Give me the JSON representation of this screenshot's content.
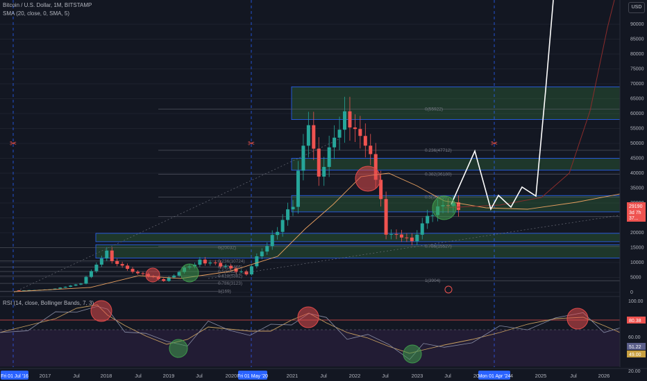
{
  "header": {
    "title": "Bitcoin / U.S. Dollar, 1M, BITSTAMP",
    "sma": "SMA (20, close, 0, SMA, 5)",
    "currency": "USD"
  },
  "rsi_pane": {
    "title": "RSI (14, close, Bollinger Bands, 7, 3)",
    "value1": "80.38",
    "value2": "51.22",
    "value3": "49.00",
    "ticks": [
      "100.00",
      "60.00",
      "20.00"
    ]
  },
  "price_axis": {
    "ticks": [
      "90000",
      "85000",
      "80000",
      "75000",
      "70000",
      "65000",
      "60000",
      "55000",
      "50000",
      "45000",
      "40000",
      "35000",
      "30000",
      "25000",
      "20000",
      "15000",
      "10000",
      "5000",
      "0"
    ],
    "current_price": "29190",
    "current_sub": "3d 7h",
    "current_sub2": "37..."
  },
  "fib_right": [
    "0(55922)",
    "0.236(47712)",
    "0.382(36180)",
    "0.5(30500)",
    "0.786(15527)",
    "1(3904)"
  ],
  "fib_left": [
    "0(20032)",
    "0.236(10724)",
    "0.382(6466)",
    "0.5(5082)",
    "0.618(5382)",
    "0.786(3123)",
    "1(169)"
  ],
  "time_axis": {
    "labels": [
      "2017",
      "Jul",
      "2018",
      "Jul",
      "2019",
      "Jul",
      "2020",
      "2021",
      "Jul",
      "2022",
      "Jul",
      "2023",
      "Jul",
      "2025",
      "Jul",
      "2026"
    ],
    "highlights": [
      "Fri 01 Jul '16",
      "Fri 01 May '20",
      "Mon 01 Apr '24"
    ],
    "partial_labels": [
      "20",
      "4"
    ]
  },
  "chart_data": {
    "type": "candlestick",
    "symbol": "BTCUSD",
    "timeframe": "1M",
    "y_range": [
      0,
      90000
    ],
    "monthly_candles_approx": [
      {
        "date": "2016-07",
        "o": 670,
        "c": 620
      },
      {
        "date": "2017-01",
        "o": 960,
        "c": 970
      },
      {
        "date": "2017-07",
        "o": 2480,
        "c": 2870
      },
      {
        "date": "2017-12",
        "o": 10000,
        "c": 13850
      },
      {
        "date": "2018-01",
        "o": 13850,
        "c": 10200
      },
      {
        "date": "2018-06",
        "o": 7500,
        "c": 6400
      },
      {
        "date": "2018-11",
        "o": 6300,
        "c": 4000
      },
      {
        "date": "2019-06",
        "o": 8500,
        "c": 10800
      },
      {
        "date": "2020-03",
        "o": 8500,
        "c": 6400
      },
      {
        "date": "2020-12",
        "o": 19700,
        "c": 29000
      },
      {
        "date": "2021-03",
        "o": 45000,
        "c": 58800
      },
      {
        "date": "2021-05",
        "o": 57700,
        "c": 37300
      },
      {
        "date": "2021-10",
        "o": 43800,
        "c": 61300
      },
      {
        "date": "2021-11",
        "o": 61300,
        "c": 57000
      },
      {
        "date": "2022-03",
        "o": 43200,
        "c": 45500
      },
      {
        "date": "2022-05",
        "o": 37700,
        "c": 31800
      },
      {
        "date": "2022-06",
        "o": 31800,
        "c": 19900
      },
      {
        "date": "2022-11",
        "o": 20500,
        "c": 17200
      },
      {
        "date": "2023-01",
        "o": 16600,
        "c": 23100
      },
      {
        "date": "2023-06",
        "o": 27200,
        "c": 30500
      },
      {
        "date": "2023-08",
        "o": 29200,
        "c": 29190
      }
    ],
    "projection_path": [
      {
        "date": "2023-08",
        "y": 29190
      },
      {
        "date": "2023-11",
        "y": 47500
      },
      {
        "date": "2024-02",
        "y": 29500
      },
      {
        "date": "2024-04",
        "y": 35500
      },
      {
        "date": "2024-06",
        "y": 30000
      },
      {
        "date": "2024-09",
        "y": 35500
      },
      {
        "date": "2024-12",
        "y": 33000
      },
      {
        "date": "2025-03",
        "y": 95000
      }
    ],
    "zones": [
      {
        "name": "top",
        "from": 58000,
        "to": 69000
      },
      {
        "name": "upper-mid",
        "from": 41000,
        "to": 45000
      },
      {
        "name": "mid",
        "from": 27000,
        "to": 32500
      },
      {
        "name": "lower",
        "from": 17000,
        "to": 19800
      },
      {
        "name": "bottom",
        "from": 11500,
        "to": 16000
      }
    ],
    "colors": {
      "up": "#26a69a",
      "down": "#ef5350",
      "zone": "#1e5c2a",
      "sma": "#e8a060",
      "projection": "#ffffff",
      "rsi": "#8a8fa8"
    }
  }
}
